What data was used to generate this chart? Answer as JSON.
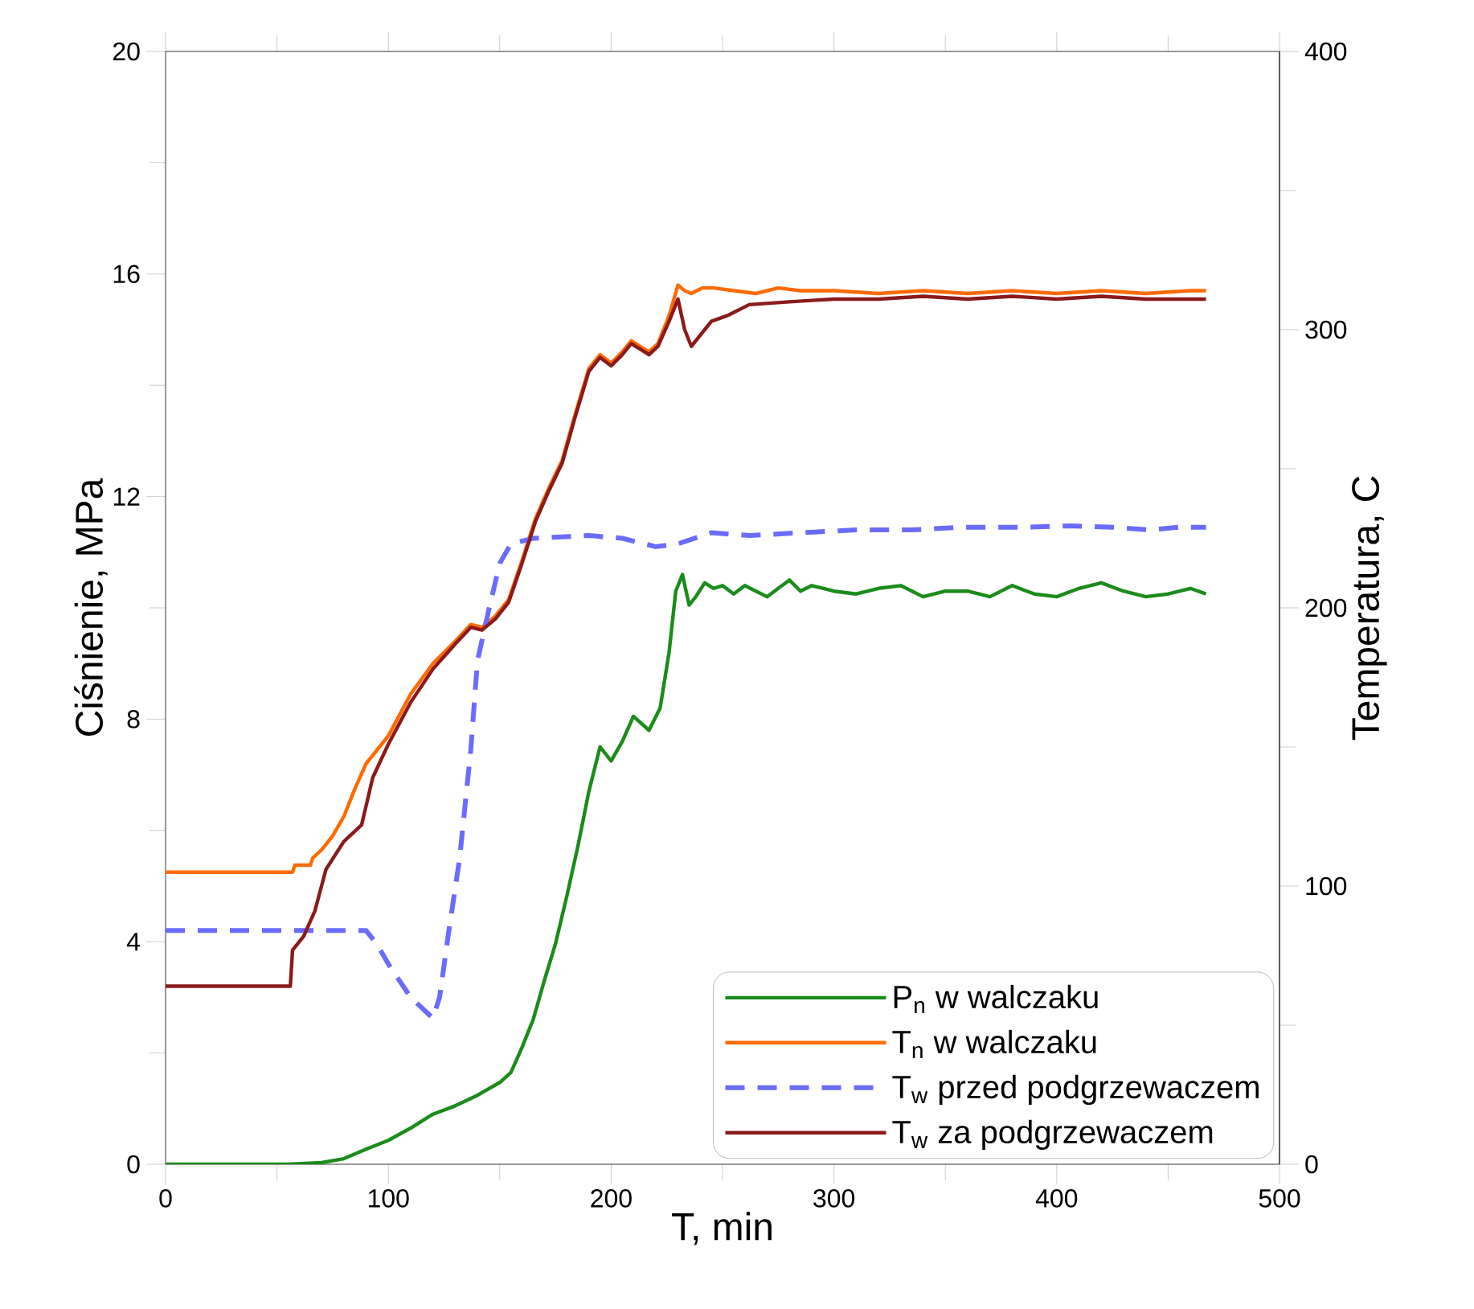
{
  "chart_data": {
    "type": "line",
    "xlabel": "T, min",
    "ylabel": "Ciśnienie, MPa",
    "y2label": "Temperatura, C",
    "xlim": [
      0,
      500
    ],
    "ylim": [
      0,
      20
    ],
    "y2lim": [
      0,
      400
    ],
    "xticks": [
      0,
      {
        "value": 50,
        "label": null
      },
      100,
      {
        "value": 150,
        "label": null
      },
      200,
      {
        "value": 250,
        "label": null
      },
      300,
      {
        "value": 350,
        "label": null
      },
      400,
      {
        "value": 450,
        "label": null
      },
      500
    ],
    "yticks": [
      0,
      {
        "value": 2,
        "label": null
      },
      4,
      {
        "value": 6,
        "label": null
      },
      8,
      {
        "value": 10,
        "label": null
      },
      12,
      {
        "value": 14,
        "label": null
      },
      16,
      {
        "value": 18,
        "label": null
      },
      20
    ],
    "y2ticks": [
      0,
      {
        "value": 50,
        "label": null
      },
      100,
      {
        "value": 150,
        "label": null
      },
      200,
      {
        "value": 250,
        "label": null
      },
      300,
      {
        "value": 350,
        "label": null
      },
      400
    ],
    "grid": false,
    "legend": "bottom right",
    "marker": "none",
    "series": [
      {
        "name": "P$_{n}$ w walczaku",
        "color": "#1a8c1a",
        "line_style": "solid",
        "x": [
          0,
          55,
          70,
          80,
          90,
          100,
          110,
          120,
          130,
          140,
          150,
          155,
          160,
          165,
          170,
          175,
          180,
          185,
          190,
          195,
          200,
          205,
          210,
          217,
          222,
          226,
          229,
          232,
          235,
          238,
          242,
          246,
          250,
          255,
          260,
          265,
          270,
          275,
          280,
          285,
          290,
          300,
          310,
          320,
          330,
          340,
          350,
          360,
          370,
          380,
          390,
          400,
          410,
          420,
          430,
          440,
          450,
          460,
          467
        ],
        "values": [
          0,
          0,
          0.03,
          0.1,
          0.27,
          0.43,
          0.65,
          0.9,
          1.05,
          1.24,
          1.47,
          1.65,
          2.1,
          2.6,
          3.3,
          3.96,
          4.8,
          5.7,
          6.7,
          7.5,
          7.25,
          7.6,
          8.05,
          7.8,
          8.2,
          9.2,
          10.3,
          10.6,
          10.05,
          10.2,
          10.45,
          10.35,
          10.4,
          10.25,
          10.4,
          10.3,
          10.2,
          10.35,
          10.5,
          10.3,
          10.4,
          10.3,
          10.25,
          10.35,
          10.4,
          10.2,
          10.3,
          10.3,
          10.2,
          10.4,
          10.25,
          10.2,
          10.35,
          10.45,
          10.3,
          10.2,
          10.25,
          10.35,
          10.25
        ]
      },
      {
        "name": "T$_{n}$ w walczaku",
        "color": "#ff6a00",
        "line_style": "solid",
        "axis": "y2",
        "x": [
          0,
          57,
          58,
          65,
          66,
          70,
          75,
          80,
          85,
          90,
          100,
          110,
          120,
          130,
          137,
          142,
          148,
          154,
          160,
          166,
          172,
          178,
          184,
          190,
          195,
          200,
          205,
          209,
          213,
          217,
          221,
          226,
          230,
          233,
          236,
          241,
          246,
          255,
          265,
          275,
          285,
          300,
          320,
          340,
          360,
          380,
          400,
          420,
          440,
          460,
          467
        ],
        "values": [
          105,
          105,
          107.5,
          107.5,
          110,
          113,
          118,
          125,
          135,
          144,
          154,
          169,
          180,
          188,
          194,
          193,
          197,
          203,
          217,
          232,
          243,
          253,
          270,
          286,
          291,
          288,
          292,
          296,
          294,
          292,
          295,
          305,
          316,
          314,
          313,
          315,
          315,
          314,
          313,
          315,
          314,
          314,
          313,
          314,
          313,
          314,
          313,
          314,
          313,
          314,
          314
        ]
      },
      {
        "name": "T$_{w}$ przed podgrzewaczem",
        "color": "#6b6bff",
        "line_style": "dashed",
        "axis": "y2",
        "x": [
          0,
          90,
          95,
          100,
          110,
          120,
          123,
          127,
          132,
          137,
          140,
          145,
          150,
          155,
          165,
          190,
          205,
          220,
          230,
          245,
          262,
          285,
          310,
          335,
          358,
          385,
          406,
          425,
          442,
          455,
          467
        ],
        "values": [
          84,
          84,
          79,
          72,
          60,
          52.5,
          60,
          83,
          110,
          149,
          181,
          199,
          216,
          223,
          225,
          226,
          225,
          222,
          223,
          227,
          226,
          227,
          228,
          228,
          229,
          229,
          229.5,
          229,
          228,
          229,
          229
        ]
      },
      {
        "name": "T$_{w}$ za podgrzewaczem",
        "color": "#8b1a1a",
        "line_style": "solid",
        "axis": "y2",
        "x": [
          0,
          56,
          57,
          62,
          67,
          72,
          80,
          88,
          93,
          100,
          110,
          120,
          130,
          137,
          142,
          148,
          154,
          160,
          166,
          172,
          178,
          184,
          190,
          195,
          200,
          205,
          209,
          213,
          217,
          221,
          226,
          230,
          233,
          236,
          240,
          245,
          252,
          262,
          280,
          300,
          320,
          340,
          360,
          380,
          400,
          420,
          440,
          460,
          467
        ],
        "values": [
          64,
          64,
          77,
          82,
          91,
          106,
          116,
          122,
          139,
          151,
          166,
          178,
          187,
          193,
          192,
          196,
          202,
          216,
          231,
          242,
          252,
          269,
          285,
          290,
          287,
          291,
          295,
          293,
          291,
          294,
          303,
          311,
          300,
          294,
          298,
          303,
          305,
          309,
          310,
          311,
          311,
          312,
          311,
          312,
          311,
          312,
          311,
          311,
          311
        ]
      }
    ]
  }
}
